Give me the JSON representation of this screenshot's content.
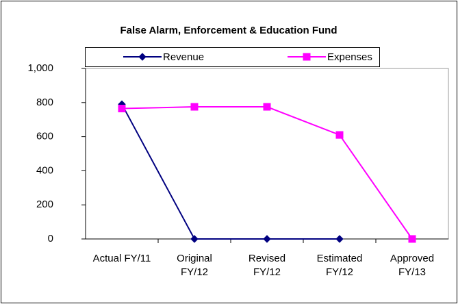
{
  "chart_data": {
    "type": "line",
    "title": "False Alarm, Enforcement & Education Fund",
    "categories": [
      "Actual FY/11",
      "Original FY/12",
      "Revised FY/12",
      "Estimated FY/12",
      "Approved FY/13"
    ],
    "series": [
      {
        "name": "Revenue",
        "color": "#000080",
        "marker": "diamond",
        "values": [
          790,
          0,
          0,
          0,
          null
        ]
      },
      {
        "name": "Expenses",
        "color": "#ff00ff",
        "marker": "square",
        "values": [
          765,
          775,
          775,
          610,
          0
        ]
      }
    ],
    "ylim": [
      0,
      1000
    ],
    "yticks": [
      0,
      200,
      400,
      600,
      800,
      {
        "value": 1000,
        "label": "1,000"
      }
    ],
    "grid": false,
    "legend": "top"
  }
}
